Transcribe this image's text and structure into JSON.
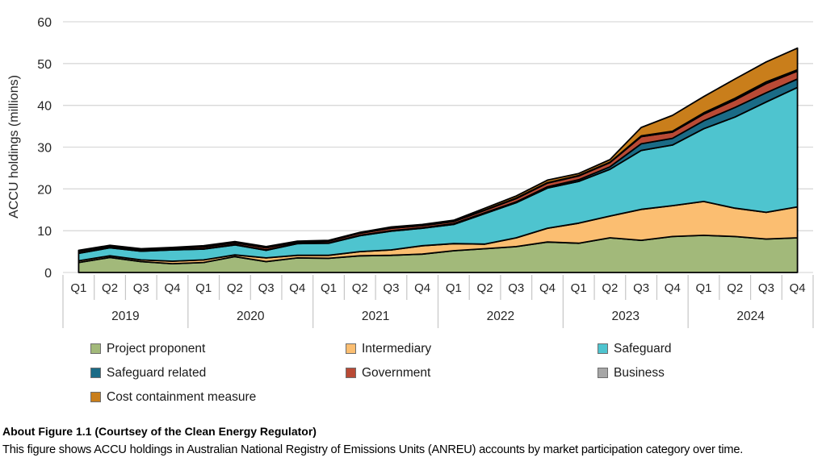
{
  "figure": {
    "caption_title": "About Figure 1.1 (Courtsey of the Clean Energy Regulator)",
    "caption_body": "This figure shows ACCU holdings in Australian National Registry of Emissions Units (ANREU) accounts by market participation category over time."
  },
  "legend": {
    "items": [
      {
        "label": "Project proponent",
        "color": "#a2b97a"
      },
      {
        "label": "Intermediary",
        "color": "#fbbe71"
      },
      {
        "label": "Safeguard",
        "color": "#4ec4cf"
      },
      {
        "label": "Safeguard related",
        "color": "#1a6b86"
      },
      {
        "label": "Government",
        "color": "#b94a35"
      },
      {
        "label": "Business",
        "color": "#a6a6a6"
      },
      {
        "label": "Cost containment measure",
        "color": "#c97e1b"
      }
    ]
  },
  "chart_data": {
    "type": "area",
    "stacked": true,
    "title": "",
    "xlabel": "",
    "ylabel": "ACCU holdings (millions)",
    "ylim": [
      0,
      60
    ],
    "y_ticks": [
      0,
      10,
      20,
      30,
      40,
      50,
      60
    ],
    "grid": "horizontal",
    "legend_position": "bottom",
    "x_quarters": [
      "Q1",
      "Q2",
      "Q3",
      "Q4",
      "Q1",
      "Q2",
      "Q3",
      "Q4",
      "Q1",
      "Q2",
      "Q3",
      "Q4",
      "Q1",
      "Q2",
      "Q3",
      "Q4",
      "Q1",
      "Q2",
      "Q3",
      "Q4",
      "Q1",
      "Q2",
      "Q3",
      "Q4"
    ],
    "x_years": [
      "2019",
      "2020",
      "2021",
      "2022",
      "2023",
      "2024"
    ],
    "series": [
      {
        "name": "Project proponent",
        "color": "#a2b97a",
        "values": [
          2.4,
          3.6,
          2.6,
          2.1,
          2.4,
          3.8,
          2.6,
          3.5,
          3.4,
          4.0,
          4.1,
          4.4,
          5.2,
          5.7,
          6.2,
          7.3,
          7.0,
          8.3,
          7.7,
          8.6,
          8.9,
          8.6,
          8.0,
          8.3
        ]
      },
      {
        "name": "Intermediary",
        "color": "#fbbe71",
        "values": [
          0.4,
          0.4,
          0.4,
          0.6,
          0.6,
          0.4,
          0.9,
          0.6,
          0.7,
          1.0,
          1.3,
          2.0,
          1.7,
          1.1,
          2.1,
          3.3,
          4.8,
          5.2,
          7.4,
          7.4,
          8.1,
          6.8,
          6.4,
          7.4
        ]
      },
      {
        "name": "Safeguard",
        "color": "#4ec4cf",
        "values": [
          1.8,
          1.9,
          2.1,
          2.7,
          2.6,
          2.4,
          1.8,
          2.8,
          2.9,
          3.8,
          4.5,
          4.2,
          4.6,
          7.3,
          8.4,
          9.6,
          10.0,
          11.2,
          14.1,
          14.5,
          17.4,
          21.8,
          26.4,
          28.6
        ]
      },
      {
        "name": "Safeguard related",
        "color": "#1a6b86",
        "values": [
          0.1,
          0.1,
          0.1,
          0.1,
          0.1,
          0.1,
          0.1,
          0.1,
          0.1,
          0.1,
          0.1,
          0.1,
          0.2,
          0.2,
          0.2,
          0.3,
          0.4,
          0.6,
          1.6,
          1.6,
          1.9,
          2.3,
          2.2,
          2.0
        ]
      },
      {
        "name": "Government",
        "color": "#b94a35",
        "values": [
          0.4,
          0.35,
          0.3,
          0.3,
          0.4,
          0.4,
          0.5,
          0.3,
          0.4,
          0.5,
          0.6,
          0.5,
          0.5,
          0.6,
          0.8,
          0.9,
          0.9,
          1.0,
          1.7,
          1.5,
          1.6,
          1.8,
          2.2,
          1.9
        ]
      },
      {
        "name": "Business",
        "color": "#a6a6a6",
        "values": [
          0.05,
          0.05,
          0.05,
          0.05,
          0.05,
          0.05,
          0.05,
          0.05,
          0.05,
          0.05,
          0.05,
          0.05,
          0.1,
          0.1,
          0.1,
          0.1,
          0.1,
          0.1,
          0.2,
          0.2,
          0.3,
          0.4,
          0.4,
          0.3
        ]
      },
      {
        "name": "Cost containment measure",
        "color": "#c97e1b",
        "values": [
          0.15,
          0.1,
          0.15,
          0.15,
          0.25,
          0.25,
          0.25,
          0.15,
          0.15,
          0.15,
          0.25,
          0.25,
          0.2,
          0.4,
          0.5,
          0.6,
          0.5,
          0.6,
          2.0,
          3.8,
          3.9,
          4.6,
          4.8,
          5.2
        ]
      }
    ]
  }
}
